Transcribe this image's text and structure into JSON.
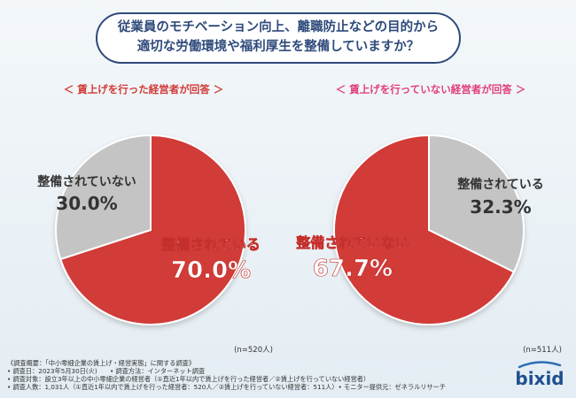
{
  "title": {
    "line1": "従業員のモチベーション向上、離職防止などの目的から",
    "line2": "適切な労働環境や福利厚生を整備していますか？"
  },
  "colors": {
    "primary": "#d13b37",
    "secondary": "#c4c4c4",
    "title": "#2e4a7a",
    "left_header": "#d13b37",
    "right_header": "#e0407a"
  },
  "chart_data": [
    {
      "type": "pie",
      "title": "＜ 賃上げを行った経営者が回答 ＞",
      "n_label": "(n=520人)",
      "slices": [
        {
          "label": "整備されている",
          "value": 70.0,
          "value_label": "70.0%"
        },
        {
          "label": "整備されていない",
          "value": 30.0,
          "value_label": "30.0%"
        }
      ]
    },
    {
      "type": "pie",
      "title": "＜ 賃上げを行っていない経営者が回答 ＞",
      "n_label": "(n=511人)",
      "slices": [
        {
          "label": "整備されていない",
          "value": 67.7,
          "value_label": "67.7%"
        },
        {
          "label": "整備されている",
          "value": 32.3,
          "value_label": "32.3%"
        }
      ]
    }
  ],
  "footer": {
    "lines": [
      "《調査概要：「中小零細企業の賃上げ・経営実態」に関する調査》",
      "• 調査日：2023年5月30日(火)　　• 調査方法：インターネット調査",
      "• 調査対象：設立3年以上の中小零細企業の経営者（①直近1年以内で賃上げを行った経営者／②賃上げを行っていない経営者）",
      "• 調査人数：1,031人（①直近1年以内で賃上げを行った経営者：520人／②賃上げを行っていない経営者：511人）• モニター提供元：ゼネラルリサーチ"
    ]
  },
  "logo": {
    "text": "bixid",
    "icon": "swoosh-icon"
  }
}
